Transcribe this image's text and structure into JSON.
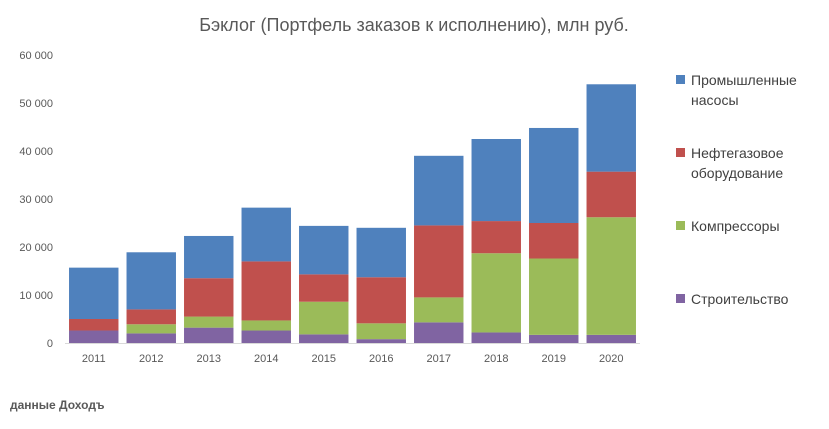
{
  "chart_data": {
    "type": "bar",
    "stacked": true,
    "title": "Бэклог (Портфель заказов к исполнению), млн руб.",
    "xlabel": "",
    "ylabel": "",
    "categories": [
      "2011",
      "2012",
      "2013",
      "2014",
      "2015",
      "2016",
      "2017",
      "2018",
      "2019",
      "2020"
    ],
    "ylim": [
      0,
      60000
    ],
    "yticks": [
      "0",
      "10 000",
      "20 000",
      "30 000",
      "40 000",
      "50 000",
      "60 000"
    ],
    "ytick_values": [
      0,
      10000,
      20000,
      30000,
      40000,
      50000,
      60000
    ],
    "grid": false,
    "legend_position": "right",
    "series": [
      {
        "name": "Строительство",
        "color": "#8064a2",
        "values": [
          2600,
          2000,
          3200,
          2600,
          1800,
          800,
          4300,
          2200,
          1700,
          1700
        ]
      },
      {
        "name": "Компрессоры",
        "color": "#9bbb59",
        "values": [
          0,
          1900,
          2300,
          2100,
          6800,
          3300,
          5200,
          16500,
          15900,
          24500
        ]
      },
      {
        "name": "Нефтегазовое оборудование",
        "color": "#c0504d",
        "values": [
          2400,
          3100,
          8000,
          12300,
          5700,
          9600,
          15000,
          6700,
          7400,
          9500
        ]
      },
      {
        "name": "Промышленные насосы",
        "color": "#4f81bd",
        "values": [
          10700,
          11900,
          8800,
          11200,
          10100,
          10300,
          14500,
          17100,
          19800,
          18200
        ]
      }
    ],
    "legend": [
      {
        "lines": [
          "Промышленные",
          "насосы"
        ],
        "color": "#4f81bd"
      },
      {
        "lines": [
          "Нефтегазовое",
          "оборудование"
        ],
        "color": "#c0504d"
      },
      {
        "lines": [
          "Компрессоры"
        ],
        "color": "#9bbb59"
      },
      {
        "lines": [
          "Строительство"
        ],
        "color": "#8064a2"
      }
    ]
  },
  "source_note": "данные Доходъ"
}
